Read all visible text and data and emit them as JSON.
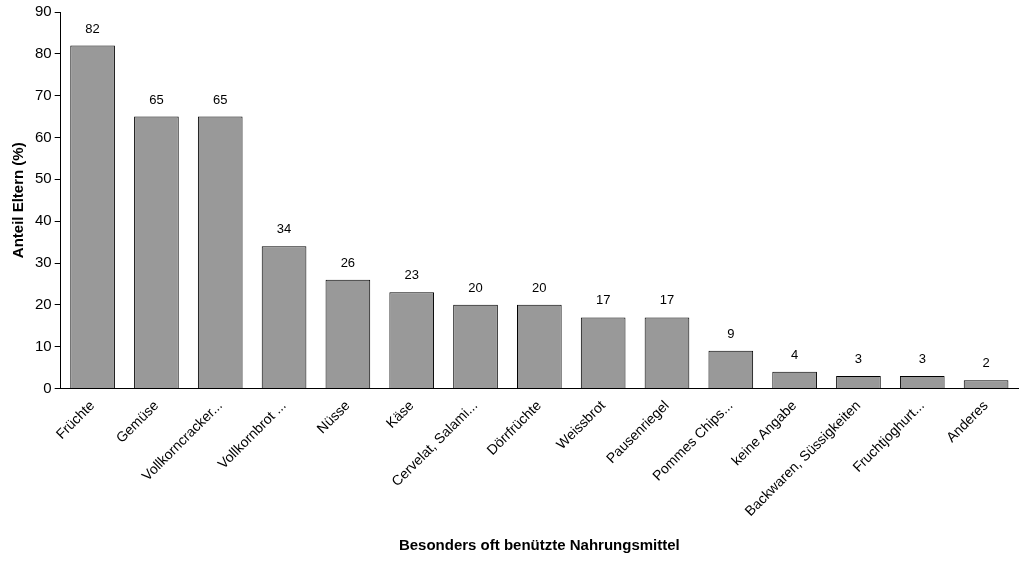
{
  "chart_data": {
    "type": "bar",
    "xlabel": "Besonders oft benützte Nahrungsmittel",
    "ylabel": "Anteil Eltern (%)",
    "categories": [
      "Früchte",
      "Gemüse",
      "Vollkorncracker...",
      "Vollkornbrot ...",
      "Nüsse",
      "Käse",
      "Cervelat, Salami...",
      "Dörrfrüchte",
      "Weissbrot",
      "Pausenriegel",
      "Pommes Chips...",
      "keine Angabe",
      "Backwaren, Süssigkeiten",
      "Fruchtjoghurt...",
      "Anderes"
    ],
    "values": [
      82,
      65,
      65,
      34,
      26,
      23,
      20,
      20,
      17,
      17,
      9,
      4,
      3,
      3,
      2
    ],
    "color": "#999999",
    "ylim": [
      0,
      90
    ],
    "yticks": [
      0,
      10,
      20,
      30,
      40,
      50,
      60,
      70,
      80,
      90
    ],
    "grid": false,
    "legend": false,
    "data_labels": true
  }
}
